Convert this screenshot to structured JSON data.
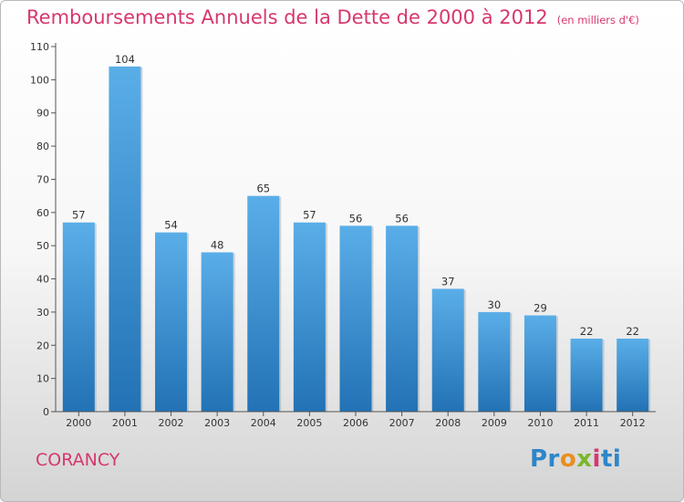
{
  "page": {
    "title": "Remboursements Annuels de la Dette de 2000 à 2012",
    "unit_note": "(en milliers d'€)",
    "town": "CORANCY",
    "logo": {
      "text": "Proxiti",
      "parts": [
        "Pr",
        "o",
        "x",
        "i",
        "ti"
      ]
    }
  },
  "colors": {
    "title": "#d7376f",
    "bar_light": "#5aaee8",
    "bar_dark": "#2272b5",
    "axis": "#333333"
  },
  "chart_data": {
    "type": "bar",
    "title": "Remboursements Annuels de la Dette de 2000 à 2012",
    "xlabel": "",
    "ylabel": "",
    "categories": [
      "2000",
      "2001",
      "2002",
      "2003",
      "2004",
      "2005",
      "2006",
      "2007",
      "2008",
      "2009",
      "2010",
      "2011",
      "2012"
    ],
    "values": [
      57,
      104,
      54,
      48,
      65,
      57,
      56,
      56,
      37,
      30,
      29,
      22,
      22
    ],
    "ylim": [
      0,
      110
    ],
    "yticks": [
      0,
      10,
      20,
      30,
      40,
      50,
      60,
      70,
      80,
      90,
      100,
      110
    ],
    "grid": false,
    "legend": "none"
  }
}
